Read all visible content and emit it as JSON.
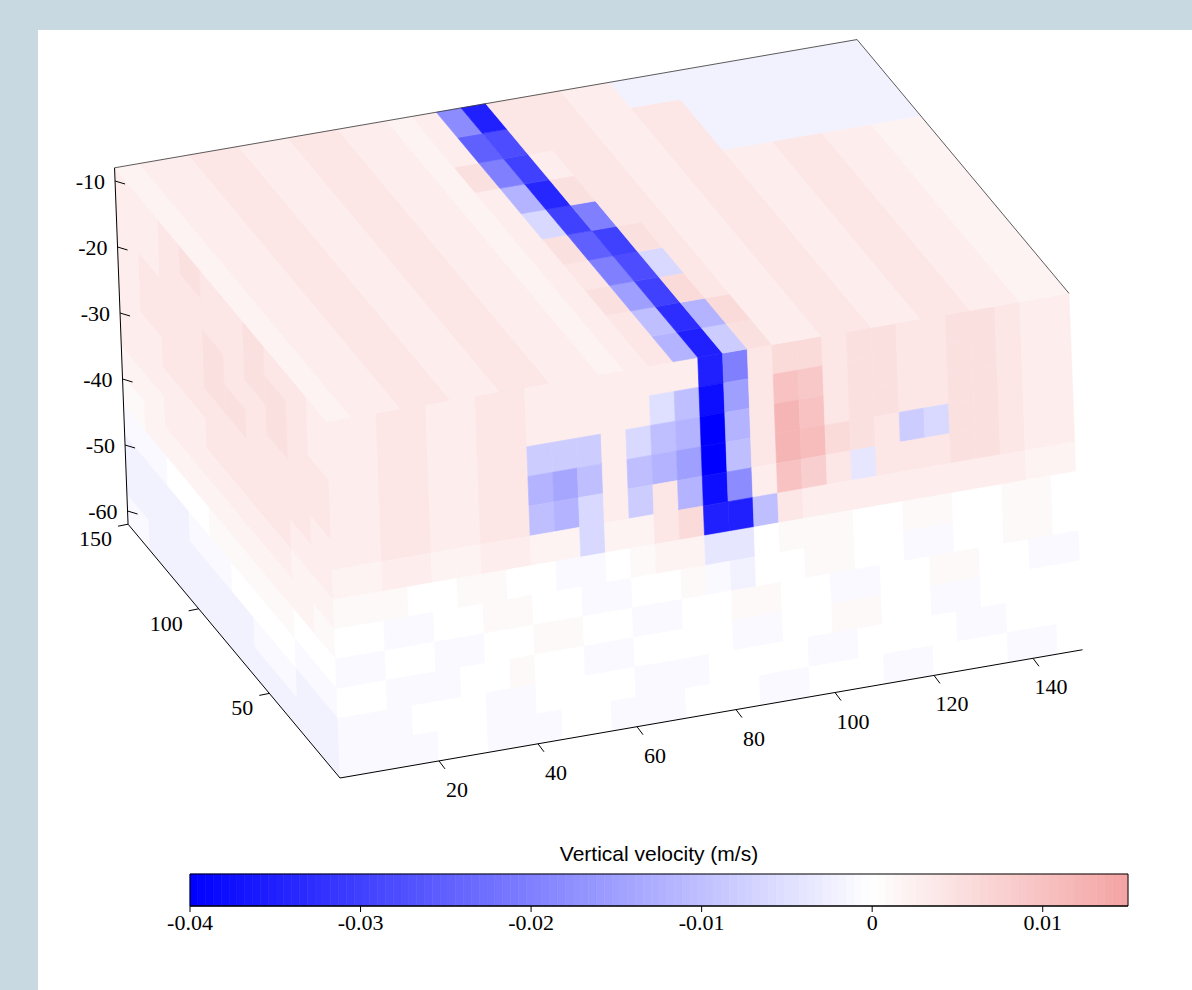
{
  "chart_data": {
    "type": "volume_slices",
    "xlim": [
      0,
      150
    ],
    "ylim": [
      0,
      150
    ],
    "zlim": [
      -62,
      -8
    ],
    "xticks": [
      20,
      40,
      60,
      80,
      100,
      120,
      140
    ],
    "yticks": [
      50,
      100,
      150
    ],
    "zticks": [
      -10,
      -20,
      -30,
      -40,
      -50,
      -60
    ],
    "faces": {
      "top": {
        "cells": [
          [
            0.002,
            0.003,
            0.003,
            0.004,
            0.004,
            0.003,
            0.003,
            0.004,
            0.004,
            0.003,
            0.003,
            0.002,
            0.003,
            0.004,
            -0.012,
            -0.035,
            -0.008,
            0.005,
            0.003,
            0.003,
            0.004,
            0.004,
            0.003,
            0.003,
            0.004,
            0.004,
            0.003,
            0.003,
            0.002,
            0.002
          ],
          [
            0.002,
            0.003,
            0.003,
            0.004,
            0.004,
            0.003,
            0.003,
            0.004,
            0.004,
            0.003,
            0.003,
            0.002,
            0.003,
            0.004,
            -0.01,
            -0.033,
            -0.012,
            0.006,
            0.003,
            0.003,
            0.004,
            0.004,
            0.003,
            0.003,
            0.004,
            0.004,
            0.003,
            0.003,
            0.002,
            0.002
          ],
          [
            0.002,
            0.003,
            0.003,
            0.004,
            0.004,
            0.003,
            0.003,
            0.004,
            0.004,
            0.003,
            0.003,
            0.002,
            0.003,
            0.005,
            -0.015,
            -0.03,
            0.006,
            0.004,
            0.003,
            0.003,
            0.004,
            0.004,
            0.003,
            0.003,
            0.004,
            0.004,
            0.003,
            0.003,
            0.002,
            0.002
          ],
          [
            0.002,
            0.003,
            0.003,
            0.004,
            0.004,
            0.003,
            0.003,
            0.004,
            0.004,
            0.003,
            0.003,
            0.002,
            0.003,
            0.004,
            -0.02,
            -0.028,
            -0.006,
            0.004,
            0.003,
            0.003,
            0.004,
            0.004,
            0.003,
            0.003,
            0.004,
            0.004,
            0.003,
            0.003,
            0.002,
            0.002
          ],
          [
            0.002,
            0.003,
            0.003,
            0.004,
            0.004,
            0.003,
            0.003,
            0.004,
            0.004,
            0.003,
            0.003,
            0.002,
            0.003,
            0.005,
            -0.025,
            -0.03,
            0.005,
            0.004,
            0.003,
            0.003,
            0.004,
            0.004,
            0.003,
            0.003,
            0.004,
            0.004,
            0.003,
            0.003,
            0.002,
            0.002
          ],
          [
            0.002,
            0.003,
            0.003,
            0.004,
            0.004,
            0.003,
            0.003,
            0.004,
            0.004,
            0.003,
            0.003,
            0.002,
            0.003,
            -0.006,
            -0.03,
            -0.02,
            0.004,
            0.004,
            0.003,
            0.003,
            0.004,
            0.004,
            0.003,
            0.003,
            0.004,
            0.004,
            0.003,
            0.003,
            0.002,
            0.002
          ],
          [
            0.002,
            0.003,
            0.003,
            0.004,
            0.004,
            0.003,
            0.003,
            0.004,
            0.004,
            0.003,
            0.003,
            0.002,
            0.003,
            -0.012,
            -0.034,
            0.005,
            0.004,
            0.004,
            0.003,
            0.003,
            0.004,
            0.004,
            0.003,
            0.003,
            0.004,
            0.004,
            0.003,
            0.003,
            0.002,
            0.002
          ],
          [
            0.002,
            0.003,
            0.003,
            0.004,
            0.004,
            0.003,
            0.003,
            0.004,
            0.004,
            0.003,
            0.003,
            0.002,
            0.005,
            -0.02,
            -0.03,
            0.003,
            0.004,
            0.004,
            0.003,
            0.003,
            0.004,
            0.004,
            -0.002,
            -0.002,
            -0.002,
            -0.002,
            -0.002,
            -0.002,
            -0.002,
            -0.002
          ],
          [
            0.002,
            0.003,
            0.003,
            0.004,
            0.004,
            0.003,
            0.003,
            0.004,
            0.004,
            0.003,
            0.003,
            0.002,
            0.003,
            -0.025,
            -0.028,
            0.004,
            0.004,
            0.004,
            0.003,
            0.003,
            0.004,
            0.004,
            -0.002,
            -0.002,
            -0.002,
            -0.002,
            -0.002,
            -0.002,
            -0.002,
            -0.002
          ],
          [
            0.002,
            0.003,
            0.003,
            0.004,
            0.004,
            0.003,
            0.003,
            0.004,
            0.004,
            0.003,
            0.003,
            0.002,
            0.003,
            -0.018,
            -0.035,
            0.004,
            0.004,
            0.004,
            0.003,
            0.003,
            -0.002,
            -0.002,
            -0.002,
            -0.002,
            -0.002,
            -0.002,
            -0.002,
            -0.002,
            -0.002,
            -0.002
          ]
        ]
      },
      "front": {
        "cells": [
          [
            0.003,
            0.003,
            0.004,
            0.004,
            0.003,
            0.003,
            0.004,
            0.004,
            0.003,
            0.003,
            0.003,
            0.003,
            0.003,
            0.003,
            0.003,
            -0.035,
            -0.02,
            0.004,
            0.006,
            0.006,
            0.004,
            0.005,
            0.005,
            0.004,
            0.004,
            0.005,
            0.005,
            0.004,
            0.003,
            0.003
          ],
          [
            0.003,
            0.003,
            0.004,
            0.004,
            0.003,
            0.003,
            0.004,
            0.004,
            0.003,
            0.003,
            0.003,
            0.003,
            0.003,
            -0.005,
            -0.01,
            -0.038,
            -0.015,
            0.004,
            0.01,
            0.009,
            0.004,
            0.005,
            0.005,
            0.004,
            0.004,
            0.005,
            0.005,
            0.004,
            0.003,
            0.003
          ],
          [
            0.003,
            0.003,
            0.004,
            0.004,
            0.003,
            0.003,
            0.004,
            0.004,
            -0.008,
            -0.008,
            -0.008,
            0.003,
            -0.006,
            -0.01,
            -0.012,
            -0.04,
            -0.012,
            0.004,
            0.012,
            0.01,
            0.004,
            0.005,
            0.005,
            0.004,
            0.004,
            0.005,
            0.005,
            0.004,
            0.003,
            0.003
          ],
          [
            0.003,
            0.003,
            0.004,
            0.004,
            0.003,
            0.003,
            0.004,
            0.004,
            -0.012,
            -0.014,
            -0.01,
            0.003,
            -0.01,
            -0.012,
            -0.015,
            -0.04,
            -0.01,
            0.004,
            0.012,
            0.011,
            0.006,
            0.005,
            0.004,
            -0.008,
            -0.006,
            0.005,
            0.005,
            0.004,
            0.003,
            0.003
          ],
          [
            0.003,
            0.003,
            0.004,
            0.004,
            0.003,
            0.003,
            0.004,
            0.004,
            -0.01,
            -0.012,
            -0.006,
            0.003,
            -0.008,
            0.004,
            -0.012,
            -0.038,
            -0.018,
            0.003,
            0.01,
            0.008,
            0.004,
            -0.004,
            0.004,
            0.004,
            0.004,
            0.005,
            0.005,
            0.004,
            0.003,
            0.003
          ],
          [
            0.002,
            0.002,
            0.003,
            0.003,
            0.002,
            0.002,
            0.003,
            0.003,
            0.002,
            0.002,
            -0.006,
            0.002,
            0.002,
            0.004,
            0.006,
            -0.035,
            -0.035,
            -0.01,
            0.004,
            0.003,
            0.003,
            0.003,
            0.003,
            0.003,
            0.003,
            0.003,
            0.003,
            0.003,
            0.002,
            0.002
          ],
          [
            0.001,
            0.001,
            0.001,
            0,
            0,
            0.001,
            0.001,
            0,
            0,
            -0.001,
            -0.001,
            0,
            0.001,
            0.002,
            0.002,
            -0.004,
            -0.004,
            0,
            0.001,
            0.001,
            0.001,
            0,
            0,
            0.001,
            0.001,
            0,
            0,
            0.001,
            0.001,
            0
          ],
          [
            0,
            0,
            -0.001,
            -0.001,
            0,
            0,
            0.001,
            0.001,
            0,
            0,
            -0.001,
            -0.001,
            0,
            0,
            0.001,
            -0.001,
            -0.002,
            0,
            0,
            0.001,
            0.001,
            0,
            0,
            -0.001,
            -0.001,
            0,
            0,
            0.001,
            0.001,
            0
          ],
          [
            -0.001,
            -0.001,
            0,
            0,
            -0.001,
            -0.001,
            0,
            0,
            0.001,
            0.001,
            0,
            0,
            -0.001,
            -0.001,
            0,
            0,
            0.001,
            0.001,
            0,
            0,
            -0.001,
            -0.001,
            0,
            0,
            0.001,
            0.001,
            0,
            0,
            -0.001,
            -0.001
          ],
          [
            0,
            0,
            -0.001,
            -0.001,
            -0.001,
            0,
            0,
            0.001,
            0,
            0,
            -0.001,
            -0.001,
            0,
            0,
            0,
            0,
            -0.001,
            -0.001,
            0,
            0,
            0.001,
            0.001,
            0,
            0,
            -0.001,
            -0.001,
            0,
            0,
            0,
            0
          ],
          [
            -0.001,
            -0.001,
            -0.001,
            0,
            0,
            0,
            -0.001,
            -0.001,
            0,
            0,
            0,
            0,
            -0.001,
            -0.001,
            -0.001,
            0,
            0,
            0,
            0,
            -0.001,
            -0.001,
            0,
            0,
            0,
            0,
            -0.001,
            -0.001,
            0,
            0,
            0
          ],
          [
            -0.001,
            -0.001,
            -0.001,
            -0.001,
            0,
            0,
            -0.001,
            -0.001,
            -0.001,
            0,
            0,
            -0.001,
            -0.001,
            -0.001,
            0,
            0,
            0,
            -0.001,
            -0.001,
            0,
            0,
            0,
            -0.001,
            -0.001,
            0,
            0,
            0,
            -0.001,
            -0.001,
            0
          ]
        ]
      },
      "left": {
        "cells": [
          [
            0.003,
            0.004,
            0.004,
            0.005,
            0.004,
            0.004,
            0.005,
            0.004,
            0.003,
            0.003
          ],
          [
            0.003,
            0.004,
            0.005,
            0.005,
            0.004,
            0.004,
            0.004,
            0.004,
            0.003,
            0.003
          ],
          [
            0.004,
            0.004,
            0.005,
            0.004,
            0.004,
            0.005,
            0.004,
            0.004,
            0.004,
            0.003
          ],
          [
            0.004,
            0.004,
            0.004,
            0.004,
            0.005,
            0.005,
            0.004,
            0.004,
            0.004,
            0.003
          ],
          [
            0.003,
            0.004,
            0.004,
            0.004,
            0.004,
            0.004,
            0.004,
            0.004,
            0.003,
            0.003
          ],
          [
            0.003,
            0.003,
            0.004,
            0.004,
            0.004,
            0.004,
            0.003,
            0.003,
            0.003,
            0.003
          ],
          [
            0.002,
            0.002,
            0.003,
            0.003,
            0.003,
            0.003,
            0.003,
            0.003,
            0.002,
            0.002
          ],
          [
            0.001,
            0.002,
            0.002,
            0.002,
            0.002,
            0.002,
            0.002,
            0.002,
            0.002,
            0.001
          ],
          [
            0,
            0,
            0.001,
            0.001,
            0.001,
            0.001,
            0,
            0,
            -0.001,
            -0.001
          ],
          [
            -0.001,
            -0.001,
            0,
            0,
            0,
            -0.001,
            -0.001,
            -0.002,
            -0.002,
            -0.002
          ],
          [
            -0.002,
            -0.002,
            -0.001,
            -0.001,
            -0.002,
            -0.002,
            -0.002,
            -0.002,
            -0.002,
            -0.002
          ],
          [
            -0.002,
            -0.002,
            -0.002,
            -0.002,
            -0.002,
            -0.002,
            -0.002,
            -0.002,
            -0.002,
            -0.001
          ]
        ]
      }
    },
    "colorbar": {
      "label": "Vertical velocity (m/s)",
      "range": [
        -0.04,
        0.015
      ],
      "ticks": [
        -0.04,
        -0.03,
        -0.02,
        -0.01,
        0,
        0.01
      ],
      "colors": [
        "#0000ff",
        "#ffffff",
        "#f4a3a3"
      ]
    }
  }
}
